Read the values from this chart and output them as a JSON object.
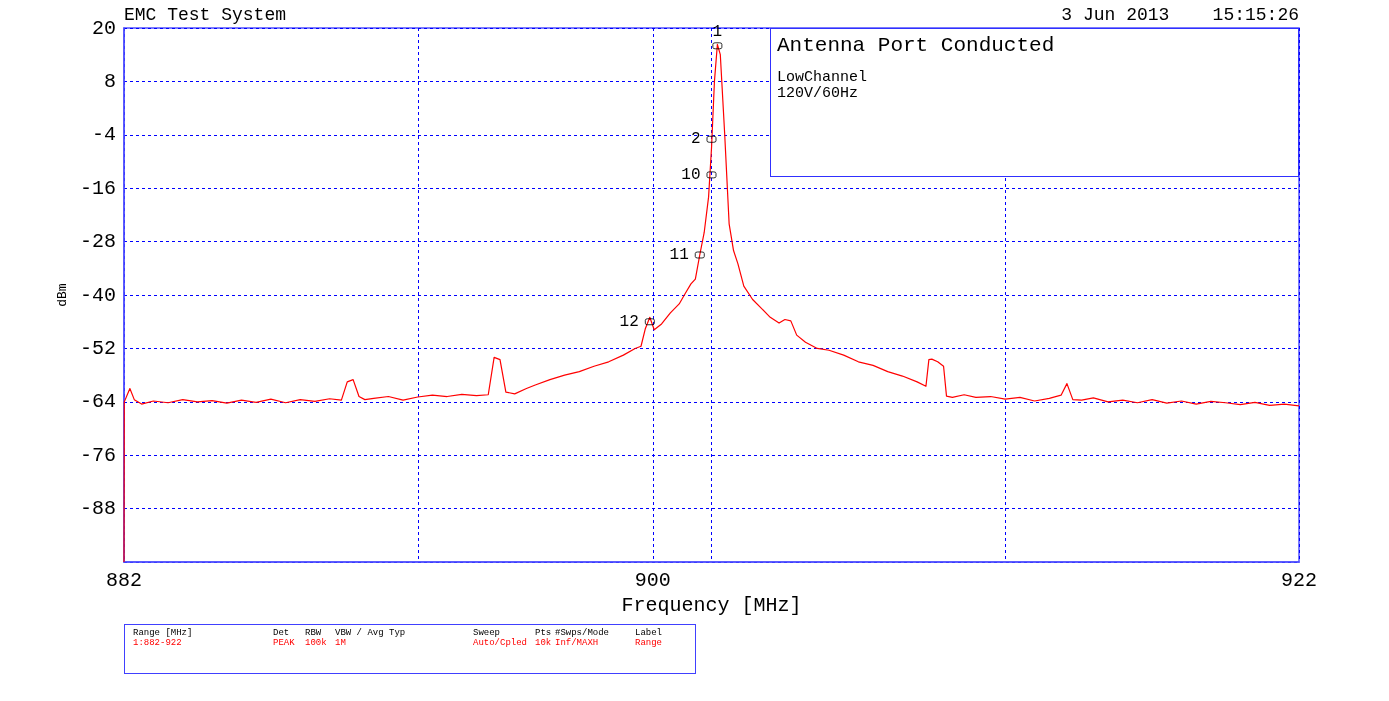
{
  "chart_data": {
    "type": "line",
    "title": "Antenna Port Conducted",
    "xlabel": "Frequency [MHz]",
    "ylabel": "dBm",
    "xlim": [
      882,
      922
    ],
    "xticks": [
      882,
      {
        "value": 892,
        "label": null
      },
      900,
      {
        "value": 902,
        "label": null
      },
      {
        "value": 912,
        "label": null
      },
      922
    ],
    "ylim": [
      -100,
      20
    ],
    "yticks": [
      {
        "value": -100,
        "label": null
      },
      -88,
      -76,
      -64,
      -52,
      -40,
      -28,
      -16,
      -4,
      8,
      20
    ],
    "grid": true,
    "marker": "none",
    "line_style": "solid",
    "series": [
      {
        "color": "#ff0000",
        "x": [
          882,
          882.01,
          882.2,
          882.35,
          882.6,
          883,
          883.5,
          884,
          884.5,
          885,
          885.5,
          886,
          886.5,
          887,
          887.5,
          888,
          888.5,
          889,
          889.4,
          889.6,
          889.8,
          890,
          890.2,
          890.5,
          891,
          891.5,
          892,
          892.5,
          893,
          893.5,
          894,
          894.4,
          894.6,
          894.8,
          895,
          895.3,
          895.7,
          896,
          896.5,
          897,
          897.5,
          898,
          898.5,
          899,
          899.4,
          899.6,
          899.75,
          899.9,
          900.05,
          900.3,
          900.6,
          900.9,
          901.1,
          901.3,
          901.45,
          901.6,
          901.75,
          901.9,
          902.0,
          902.1,
          902.2,
          902.3,
          902.45,
          902.6,
          902.75,
          902.9,
          903.1,
          903.4,
          903.7,
          904,
          904.3,
          904.5,
          904.7,
          904.9,
          905.2,
          905.6,
          906,
          906.5,
          907,
          907.5,
          908,
          908.5,
          909,
          909.3,
          909.4,
          909.5,
          909.7,
          909.9,
          910,
          910.2,
          910.6,
          911,
          911.5,
          912,
          912.5,
          913,
          913.5,
          913.9,
          914.1,
          914.3,
          914.6,
          915,
          915.5,
          916,
          916.5,
          917,
          917.5,
          918,
          918.5,
          919,
          919.5,
          920,
          920.5,
          921,
          921.5,
          922
        ],
        "values": [
          -100,
          -64,
          -61,
          -63.5,
          -64.5,
          -63.8,
          -64.2,
          -63.5,
          -64,
          -63.7,
          -64.3,
          -63.6,
          -64.1,
          -63.4,
          -64.2,
          -63.5,
          -63.9,
          -63.3,
          -63.6,
          -59.5,
          -59,
          -62.8,
          -63.5,
          -63.2,
          -62.8,
          -63.6,
          -62.9,
          -62.5,
          -62.8,
          -62.3,
          -62.6,
          -62.4,
          -54,
          -54.5,
          -61.8,
          -62.2,
          -61,
          -60.2,
          -59,
          -58,
          -57.2,
          -56,
          -55,
          -53.5,
          -52,
          -51.5,
          -47.5,
          -45,
          -47.8,
          -46.5,
          -44,
          -42,
          -39.7,
          -37.5,
          -36.4,
          -31,
          -26,
          -18,
          -7,
          8,
          16.3,
          14,
          -4,
          -24,
          -30,
          -33,
          -38,
          -41,
          -43,
          -45,
          -46.3,
          -45.5,
          -45.8,
          -49,
          -50.6,
          -52,
          -52.4,
          -53.5,
          -55,
          -55.8,
          -57.2,
          -58.2,
          -59.5,
          -60.5,
          -54.5,
          -54.4,
          -55,
          -56,
          -62.7,
          -63,
          -62.4,
          -63,
          -62.8,
          -63.4,
          -63,
          -63.8,
          -63.2,
          -62.5,
          -59.9,
          -63.5,
          -63.6,
          -63.1,
          -64,
          -63.6,
          -64.2,
          -63.5,
          -64.3,
          -63.8,
          -64.5,
          -63.9,
          -64.2,
          -64.6,
          -64.1,
          -64.8,
          -64.5,
          -64.9
        ]
      }
    ],
    "annotations": [
      "EMC Test System",
      "3 Jun 2013",
      "15:15:26",
      "LowChannel",
      "120V/60Hz",
      {
        "text": "1",
        "x": 902.2,
        "y": 16
      },
      {
        "text": "2",
        "x": 902,
        "y": -5
      },
      {
        "text": "10",
        "x": 902,
        "y": -13
      },
      {
        "text": "11",
        "x": 901.6,
        "y": -31
      },
      {
        "text": "12",
        "x": 899.9,
        "y": -46
      },
      "Range [MHz]",
      "Det",
      "RBW",
      "VBW / Avg Typ",
      "Sweep",
      "Pts",
      "#Swps/Mode",
      "Label",
      "1:882-922",
      "PEAK",
      "100k",
      "1M",
      "Auto/Cpled",
      "10k",
      "Inf/MAXH",
      "Range"
    ]
  }
}
